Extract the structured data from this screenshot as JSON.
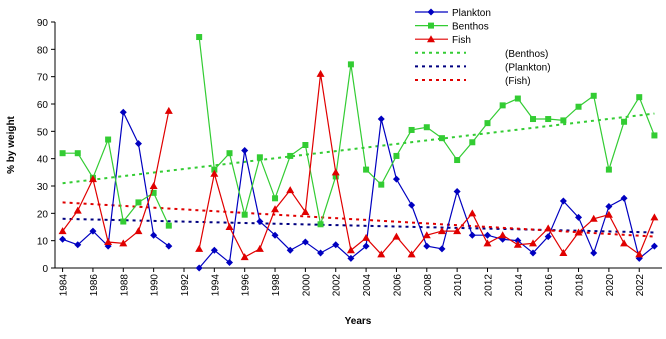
{
  "chart_data": {
    "type": "line",
    "y_label": "% by weight",
    "x_label": "Years",
    "x": [
      1984,
      1985,
      1986,
      1987,
      1988,
      1989,
      1990,
      1991,
      1992,
      1993,
      1994,
      1995,
      1996,
      1997,
      1998,
      1999,
      2000,
      2001,
      2002,
      2003,
      2004,
      2005,
      2006,
      2007,
      2008,
      2009,
      2010,
      2011,
      2012,
      2013,
      2014,
      2015,
      2016,
      2017,
      2018,
      2019,
      2020,
      2021,
      2022,
      2023
    ],
    "xlim": [
      1983.5,
      2023.5
    ],
    "xticks": [
      1984,
      1986,
      1988,
      1990,
      1992,
      1994,
      1996,
      1998,
      2000,
      2002,
      2004,
      2006,
      2008,
      2010,
      2012,
      2014,
      2016,
      2018,
      2020,
      2022
    ],
    "ylim": [
      0,
      90
    ],
    "yticks": [
      0,
      10,
      20,
      30,
      40,
      50,
      60,
      70,
      80,
      90
    ],
    "grid": false,
    "series": [
      {
        "name": "Plankton",
        "color": "#0000c0",
        "marker": "diamond",
        "values": [
          10.5,
          8.5,
          13.5,
          8,
          57,
          45.5,
          12,
          8,
          null,
          0,
          6.5,
          2,
          43,
          17,
          12,
          6.5,
          9.5,
          5.5,
          8.5,
          3.5,
          8,
          54.5,
          32.5,
          23,
          8,
          7,
          28,
          12,
          12,
          10.5,
          10,
          5.5,
          11.5,
          24.5,
          18.5,
          5.5,
          22.5,
          25.5,
          3.5,
          8
        ]
      },
      {
        "name": "Benthos",
        "color": "#33cc33",
        "marker": "square",
        "values": [
          42,
          42,
          33,
          47,
          17,
          24,
          27.5,
          15.5,
          null,
          84.5,
          36,
          42,
          19.5,
          40.5,
          25.5,
          41,
          45,
          16,
          33.5,
          74.5,
          36,
          30.5,
          41,
          50.5,
          51.5,
          47.5,
          39.5,
          46,
          53,
          59.5,
          62,
          54.5,
          54.5,
          54,
          59,
          63,
          36,
          53.5,
          62.5,
          48.5
        ]
      },
      {
        "name": "Fish",
        "color": "#e00000",
        "marker": "triangle",
        "values": [
          13.5,
          21,
          32.5,
          9.5,
          9,
          13.5,
          30,
          57.5,
          null,
          7,
          34.5,
          15,
          4,
          7,
          21.5,
          28.5,
          20.5,
          71,
          35,
          6.5,
          11,
          5,
          11.5,
          5,
          12,
          13.5,
          13.5,
          20,
          9,
          12,
          8.5,
          9,
          14.5,
          5.5,
          13,
          18,
          19.5,
          9,
          5,
          18.5
        ]
      }
    ],
    "trends": [
      {
        "name": "(Benthos)",
        "color": "#33cc33",
        "x": [
          1984,
          2023
        ],
        "values": [
          31,
          56.5
        ]
      },
      {
        "name": "(Plankton)",
        "color": "#000080",
        "x": [
          1984,
          2023
        ],
        "values": [
          18,
          13
        ]
      },
      {
        "name": "(Fish)",
        "color": "#e00000",
        "x": [
          1984,
          2023
        ],
        "values": [
          24,
          11.5
        ]
      }
    ]
  }
}
